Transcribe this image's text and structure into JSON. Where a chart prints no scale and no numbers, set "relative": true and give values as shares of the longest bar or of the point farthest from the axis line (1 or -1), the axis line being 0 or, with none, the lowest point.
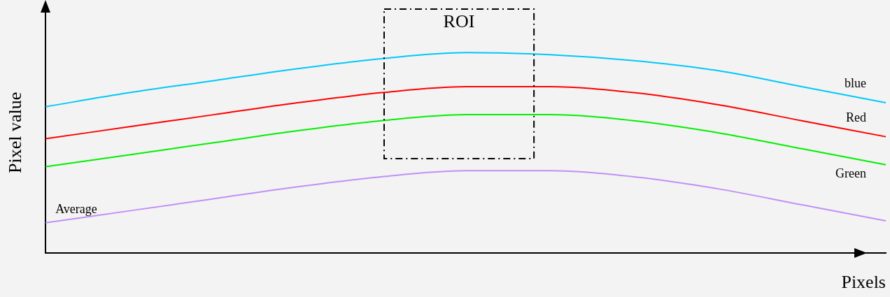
{
  "chart_data": {
    "type": "line",
    "xlabel": "Pixels",
    "ylabel": "Pixel value",
    "relative": true,
    "categories": [
      null,
      null,
      null,
      null,
      null,
      null,
      null,
      null,
      null,
      null,
      null
    ],
    "series": [
      {
        "name": "blue",
        "color": "#00c8f8",
        "values": [
          0.73,
          0.8,
          0.86,
          0.92,
          0.97,
          1,
          0.99,
          0.96,
          0.91,
          0.83,
          0.75
        ]
      },
      {
        "name": "Red",
        "color": "#ff0000",
        "values": [
          0.57,
          0.63,
          0.69,
          0.75,
          0.8,
          0.83,
          0.83,
          0.8,
          0.74,
          0.66,
          0.58
        ]
      },
      {
        "name": "Green",
        "color": "#00f000",
        "values": [
          0.43,
          0.49,
          0.55,
          0.61,
          0.66,
          0.69,
          0.69,
          0.66,
          0.6,
          0.52,
          0.44
        ]
      },
      {
        "name": "Average",
        "color": "#c090f8",
        "values": [
          0.15,
          0.21,
          0.27,
          0.33,
          0.38,
          0.41,
          0.41,
          0.38,
          0.32,
          0.24,
          0.16
        ]
      }
    ],
    "annotations": [
      "ROI"
    ],
    "grid": false,
    "legend": false,
    "tick_labels": false,
    "marker": "none",
    "line_style": "solid"
  }
}
